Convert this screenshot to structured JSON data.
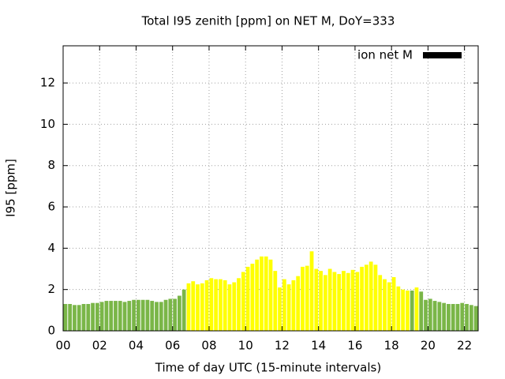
{
  "chart_data": {
    "type": "bar",
    "title": "Total I95 zenith [ppm] on NET M, DoY=333",
    "x_label": "Time of day UTC (15-minute intervals)",
    "y_label": "I95 [ppm]",
    "x": [
      0,
      0.25,
      0.5,
      0.75,
      1,
      1.25,
      1.5,
      1.75,
      2,
      2.25,
      2.5,
      2.75,
      3,
      3.25,
      3.5,
      3.75,
      4,
      4.25,
      4.5,
      4.75,
      5,
      5.25,
      5.5,
      5.75,
      6,
      6.25,
      6.5,
      6.75,
      7,
      7.25,
      7.5,
      7.75,
      8,
      8.25,
      8.5,
      8.75,
      9,
      9.25,
      9.5,
      9.75,
      10,
      10.25,
      10.5,
      10.75,
      11,
      11.25,
      11.5,
      11.75,
      12,
      12.25,
      12.5,
      12.75,
      13,
      13.25,
      13.5,
      13.75,
      14,
      14.25,
      14.5,
      14.75,
      15,
      15.25,
      15.5,
      15.75,
      16,
      16.25,
      16.5,
      16.75,
      17,
      17.25,
      17.5,
      17.75,
      18,
      18.25,
      18.5,
      18.75,
      19,
      19.25,
      19.5,
      19.75,
      20,
      20.25,
      20.5,
      20.75,
      21,
      21.25,
      21.5,
      21.75,
      22,
      22.25,
      22.5
    ],
    "series": [
      {
        "name": "ion net M",
        "color": "#000000",
        "values": [
          1.3,
          1.3,
          1.25,
          1.25,
          1.3,
          1.3,
          1.35,
          1.35,
          1.4,
          1.45,
          1.45,
          1.45,
          1.45,
          1.4,
          1.45,
          1.5,
          1.5,
          1.5,
          1.5,
          1.45,
          1.4,
          1.4,
          1.5,
          1.55,
          1.55,
          1.7,
          2.0,
          2.3,
          2.4,
          2.25,
          2.3,
          2.45,
          2.55,
          2.5,
          2.5,
          2.45,
          2.25,
          2.35,
          2.55,
          2.85,
          3.1,
          3.25,
          3.45,
          3.6,
          3.6,
          3.45,
          2.9,
          2.1,
          2.5,
          2.25,
          2.45,
          2.65,
          3.1,
          3.15,
          3.85,
          3.0,
          2.9,
          2.7,
          3.0,
          2.85,
          2.75,
          2.9,
          2.8,
          2.95,
          2.85,
          3.1,
          3.2,
          3.35,
          3.2,
          2.7,
          2.5,
          2.35,
          2.6,
          2.15,
          2.0,
          1.95,
          1.95,
          2.1,
          1.9,
          1.5,
          1.55,
          1.45,
          1.4,
          1.35,
          1.3,
          1.3,
          1.3,
          1.35,
          1.3,
          1.25,
          1.2
        ],
        "bar_colors": [
          "#7ab648",
          "#7ab648",
          "#7ab648",
          "#7ab648",
          "#7ab648",
          "#7ab648",
          "#7ab648",
          "#7ab648",
          "#7ab648",
          "#7ab648",
          "#7ab648",
          "#7ab648",
          "#7ab648",
          "#7ab648",
          "#7ab648",
          "#7ab648",
          "#7ab648",
          "#7ab648",
          "#7ab648",
          "#7ab648",
          "#7ab648",
          "#7ab648",
          "#7ab648",
          "#7ab648",
          "#7ab648",
          "#7ab648",
          "#7ab648",
          "#ffff00",
          "#ffff00",
          "#ffff00",
          "#ffff00",
          "#ffff00",
          "#ffff00",
          "#ffff00",
          "#ffff00",
          "#ffff00",
          "#ffff00",
          "#ffff00",
          "#ffff00",
          "#ffff00",
          "#ffff00",
          "#ffff00",
          "#ffff00",
          "#ffff00",
          "#ffff00",
          "#ffff00",
          "#ffff00",
          "#ffff00",
          "#ffff00",
          "#ffff00",
          "#ffff00",
          "#ffff00",
          "#ffff00",
          "#ffff00",
          "#ffff00",
          "#ffff00",
          "#ffff00",
          "#ffff00",
          "#ffff00",
          "#ffff00",
          "#ffff00",
          "#ffff00",
          "#ffff00",
          "#ffff00",
          "#ffff00",
          "#ffff00",
          "#ffff00",
          "#ffff00",
          "#ffff00",
          "#ffff00",
          "#ffff00",
          "#ffff00",
          "#ffff00",
          "#ffff00",
          "#ffff00",
          "#ffff00",
          "#7ab648",
          "#ffff00",
          "#7ab648",
          "#7ab648",
          "#7ab648",
          "#7ab648",
          "#7ab648",
          "#7ab648",
          "#7ab648",
          "#7ab648",
          "#7ab648",
          "#7ab648",
          "#7ab648",
          "#7ab648",
          "#7ab648"
        ]
      }
    ],
    "xlim": [
      0,
      22.75
    ],
    "xticks": [
      {
        "value": 0,
        "label": "00"
      },
      {
        "value": 2,
        "label": "02"
      },
      {
        "value": 4,
        "label": "04"
      },
      {
        "value": 6,
        "label": "06"
      },
      {
        "value": 8,
        "label": "08"
      },
      {
        "value": 10,
        "label": "10"
      },
      {
        "value": 12,
        "label": "12"
      },
      {
        "value": 14,
        "label": "14"
      },
      {
        "value": 16,
        "label": "16"
      },
      {
        "value": 18,
        "label": "18"
      },
      {
        "value": 20,
        "label": "20"
      },
      {
        "value": 22,
        "label": "22"
      }
    ],
    "ylim": [
      0,
      13.8
    ],
    "yticks": [
      0,
      2,
      4,
      6,
      8,
      10,
      12
    ],
    "grid": true,
    "legend": "top-right"
  }
}
